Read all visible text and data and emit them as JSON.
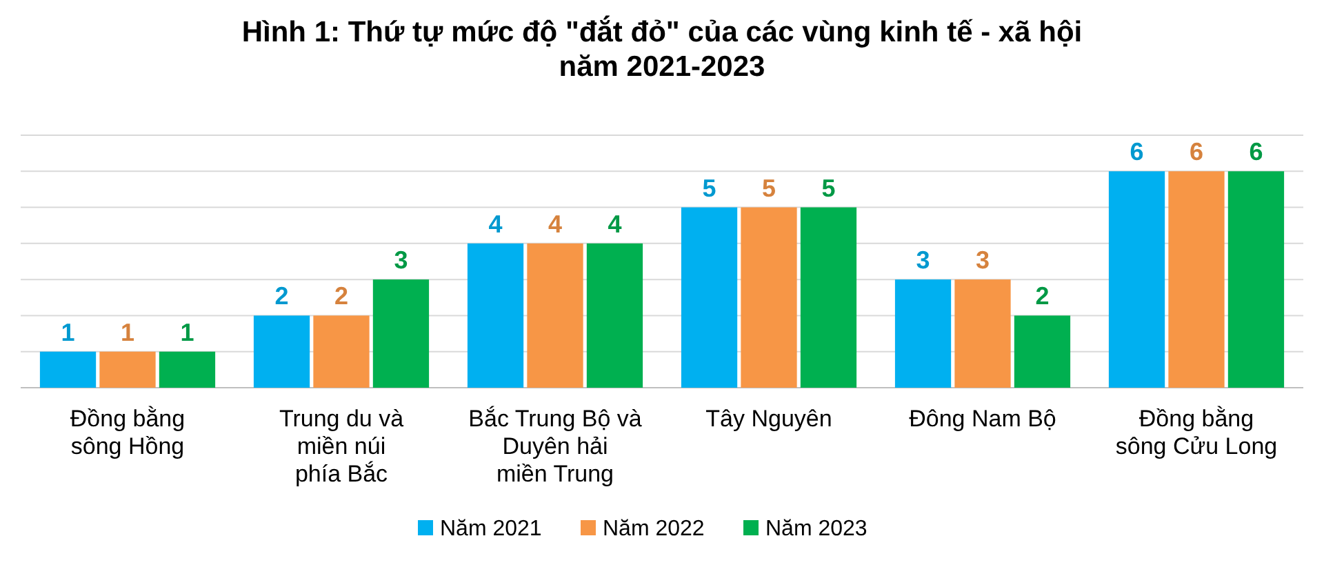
{
  "chart_data": {
    "type": "bar",
    "title": "Hình 1: Thứ tự mức độ \"đắt đỏ\" của các vùng kinh tế - xã hội\nnăm 2021-2023",
    "categories": [
      "Đồng bằng\nsông Hồng",
      "Trung du và\nmiền núi\nphía Bắc",
      "Bắc Trung Bộ và\nDuyên hải\nmiền Trung",
      "Tây Nguyên",
      "Đông Nam Bộ",
      "Đồng bằng\nsông Cửu Long"
    ],
    "series": [
      {
        "name": "Năm 2021",
        "color": "#00b0f0",
        "values": [
          1,
          2,
          4,
          5,
          3,
          6
        ]
      },
      {
        "name": "Năm 2022",
        "color": "#f79646",
        "values": [
          1,
          2,
          4,
          5,
          3,
          6
        ]
      },
      {
        "name": "Năm 2023",
        "color": "#00b050",
        "values": [
          1,
          3,
          4,
          5,
          2,
          6
        ]
      }
    ],
    "ylim": [
      0,
      7
    ],
    "yticks": [
      {
        "value": 0,
        "label": null
      },
      {
        "value": 1,
        "label": null
      },
      {
        "value": 2,
        "label": null
      },
      {
        "value": 3,
        "label": null
      },
      {
        "value": 4,
        "label": null
      },
      {
        "value": 5,
        "label": null
      },
      {
        "value": 6,
        "label": null
      },
      {
        "value": 7,
        "label": null
      }
    ],
    "tick_labels": "x",
    "grid": "y",
    "data_labels": true,
    "legend": "bottom"
  }
}
